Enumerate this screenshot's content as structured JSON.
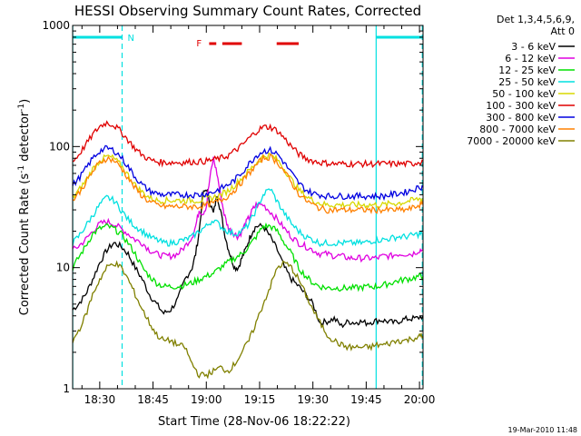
{
  "chart_data": {
    "type": "line",
    "title": "HESSI Observing Summary Count Rates, Corrected",
    "xlabel": "Start Time (28-Nov-06 18:22:22)",
    "ylabel_parts": [
      "Corrected Count Rate (s",
      "-1",
      " detector",
      "-1",
      ")"
    ],
    "y_scale": "log",
    "ylim": [
      1,
      1000
    ],
    "y_ticks": [
      {
        "value": 1,
        "label": "1"
      },
      {
        "value": 10,
        "label": "10"
      },
      {
        "value": 100,
        "label": "100"
      },
      {
        "value": 1000,
        "label": "1000"
      }
    ],
    "xlim_minutes": [
      1102.37,
      1201.0
    ],
    "x_ticks": [
      {
        "value": 1110,
        "label": "18:30"
      },
      {
        "value": 1125,
        "label": "18:45"
      },
      {
        "value": 1140,
        "label": "19:00"
      },
      {
        "value": 1155,
        "label": "19:15"
      },
      {
        "value": 1170,
        "label": "19:30"
      },
      {
        "value": 1185,
        "label": "19:45"
      },
      {
        "value": 1200,
        "label": "20:00"
      }
    ],
    "legend_header": [
      "Det 1,3,4,5,6,9,",
      "Att 0"
    ],
    "legend_position": "right",
    "series": [
      {
        "name": "3 - 6 keV",
        "color": "#000000",
        "x": [
          1102.4,
          1104,
          1106,
          1108,
          1110,
          1112,
          1114,
          1116,
          1118,
          1120,
          1122,
          1124,
          1126,
          1128,
          1130,
          1132,
          1134,
          1136,
          1137,
          1138,
          1139,
          1140,
          1141,
          1142,
          1143,
          1144,
          1145,
          1146,
          1147,
          1148,
          1149,
          1150,
          1151,
          1152,
          1153,
          1154,
          1156,
          1158,
          1160,
          1162,
          1164,
          1166,
          1168,
          1170,
          1172,
          1174,
          1176,
          1178,
          1180,
          1182,
          1183,
          1185,
          1187,
          1189,
          1191,
          1193,
          1195,
          1197,
          1199,
          1201
        ],
        "y": [
          4.5,
          5,
          6,
          8,
          11,
          14,
          16,
          15,
          13,
          10,
          8,
          6,
          5,
          4.2,
          4.5,
          5.5,
          8,
          10,
          13,
          20,
          40,
          45,
          35,
          28,
          40,
          30,
          20,
          15,
          12,
          10,
          10,
          12,
          14,
          17,
          20,
          22,
          22,
          18,
          14,
          10,
          8,
          7,
          6,
          5,
          3.5,
          3.6,
          3.8,
          3.3,
          3.6,
          3.5,
          3.6,
          3.5,
          3.6,
          3.7,
          3.6,
          3.5,
          3.7,
          3.8,
          3.8,
          4
        ]
      },
      {
        "name": "6 - 12 keV",
        "color": "#e000e0",
        "x": [
          1102.4,
          1104,
          1106,
          1108,
          1110,
          1112,
          1114,
          1116,
          1118,
          1120,
          1122,
          1124,
          1126,
          1128,
          1130,
          1132,
          1134,
          1136,
          1137,
          1138,
          1139,
          1140,
          1141,
          1142,
          1143,
          1144,
          1145,
          1146,
          1147,
          1148,
          1149,
          1150,
          1151,
          1152,
          1153,
          1154,
          1156,
          1158,
          1160,
          1162,
          1164,
          1166,
          1168,
          1170,
          1172,
          1174,
          1176,
          1178,
          1180,
          1182,
          1184,
          1186,
          1188,
          1190,
          1192,
          1194,
          1196,
          1198,
          1200,
          1201
        ],
        "y": [
          14,
          15,
          17,
          20,
          23,
          24,
          23,
          21,
          19,
          17,
          16,
          14,
          13,
          12.5,
          12.5,
          13,
          15,
          18,
          22,
          30,
          28,
          32,
          55,
          80,
          60,
          40,
          28,
          22,
          20,
          19,
          18,
          20,
          23,
          26,
          30,
          33,
          33,
          29,
          25,
          21,
          18,
          16,
          15,
          14,
          13,
          13,
          12.5,
          12.5,
          12,
          12,
          12,
          12,
          12,
          12.5,
          12.5,
          13,
          13,
          13,
          14,
          14
        ]
      },
      {
        "name": "12 - 25 keV",
        "color": "#00e000",
        "x": [
          1102.4,
          1104,
          1106,
          1108,
          1110,
          1112,
          1114,
          1116,
          1118,
          1120,
          1122,
          1124,
          1126,
          1128,
          1130,
          1132,
          1134,
          1136,
          1138,
          1140,
          1142,
          1144,
          1146,
          1148,
          1150,
          1152,
          1154,
          1156,
          1158,
          1160,
          1162,
          1164,
          1166,
          1168,
          1170,
          1172,
          1174,
          1176,
          1178,
          1180,
          1182,
          1184,
          1186,
          1188,
          1190,
          1192,
          1194,
          1196,
          1198,
          1200,
          1201
        ],
        "y": [
          10,
          12,
          15,
          19,
          21,
          22,
          21,
          19,
          16,
          13,
          10,
          8.5,
          7.5,
          7,
          7,
          7,
          7.2,
          7.5,
          8,
          8.5,
          9,
          10,
          11,
          12,
          13,
          15,
          18,
          22,
          22,
          20,
          16,
          13,
          10,
          8.5,
          7.5,
          7,
          6.8,
          6.8,
          6.8,
          6.8,
          6.8,
          6.9,
          7,
          7,
          7.2,
          7.5,
          7.8,
          8,
          8.2,
          8.5,
          8.5
        ]
      },
      {
        "name": "25 - 50 keV",
        "color": "#00e0e0",
        "x": [
          1102.4,
          1104,
          1106,
          1108,
          1110,
          1112,
          1114,
          1116,
          1118,
          1120,
          1122,
          1124,
          1126,
          1128,
          1130,
          1132,
          1134,
          1136,
          1138,
          1140,
          1142,
          1144,
          1146,
          1148,
          1150,
          1152,
          1154,
          1156,
          1158,
          1160,
          1162,
          1164,
          1166,
          1168,
          1170,
          1172,
          1174,
          1176,
          1178,
          1180,
          1182,
          1184,
          1186,
          1188,
          1190,
          1192,
          1194,
          1196,
          1198,
          1200,
          1201
        ],
        "y": [
          16,
          18,
          22,
          27,
          33,
          38,
          36,
          30,
          25,
          22,
          20,
          18,
          17,
          16,
          16,
          16.5,
          17,
          18,
          20,
          22,
          25,
          22,
          20,
          19,
          20,
          23,
          30,
          40,
          45,
          35,
          28,
          23,
          20,
          18,
          17,
          16,
          16,
          16,
          16,
          16,
          16,
          16,
          16.5,
          17,
          17,
          17.5,
          18,
          18,
          18.5,
          19,
          19
        ]
      },
      {
        "name": "50 - 100 keV",
        "color": "#d8d800",
        "x": [
          1102.4,
          1104,
          1106,
          1108,
          1110,
          1112,
          1114,
          1116,
          1118,
          1120,
          1122,
          1124,
          1126,
          1128,
          1130,
          1132,
          1134,
          1136,
          1138,
          1140,
          1142,
          1144,
          1146,
          1148,
          1150,
          1152,
          1154,
          1156,
          1158,
          1160,
          1162,
          1164,
          1166,
          1168,
          1170,
          1172,
          1174,
          1176,
          1178,
          1180,
          1182,
          1184,
          1186,
          1188,
          1190,
          1192,
          1194,
          1196,
          1198,
          1200,
          1201
        ],
        "y": [
          38,
          43,
          52,
          65,
          76,
          83,
          80,
          70,
          58,
          48,
          42,
          38,
          36,
          36,
          36,
          36,
          36,
          36,
          36,
          37,
          38,
          40,
          43,
          48,
          55,
          63,
          73,
          83,
          85,
          78,
          65,
          53,
          44,
          39,
          36,
          34,
          33,
          33,
          33,
          33,
          33,
          33,
          33,
          33,
          33,
          34,
          34,
          35,
          36,
          37,
          37
        ]
      },
      {
        "name": "100 - 300 keV",
        "color": "#e00000",
        "x": [
          1102.4,
          1104,
          1106,
          1108,
          1110,
          1112,
          1114,
          1116,
          1118,
          1120,
          1122,
          1124,
          1126,
          1128,
          1130,
          1132,
          1134,
          1136,
          1138,
          1140,
          1142,
          1144,
          1146,
          1148,
          1150,
          1152,
          1154,
          1156,
          1158,
          1160,
          1162,
          1164,
          1166,
          1168,
          1170,
          1172,
          1174,
          1176,
          1178,
          1180,
          1182,
          1184,
          1186,
          1188,
          1190,
          1192,
          1194,
          1196,
          1198,
          1200,
          1201
        ],
        "y": [
          75,
          85,
          103,
          125,
          147,
          158,
          150,
          133,
          113,
          96,
          85,
          78,
          75,
          74,
          74,
          74,
          74,
          75,
          75,
          76,
          78,
          80,
          84,
          92,
          102,
          117,
          133,
          145,
          145,
          135,
          117,
          100,
          87,
          80,
          76,
          74,
          73,
          72,
          72,
          72,
          72,
          72,
          72,
          72,
          72,
          72,
          72,
          72,
          72,
          75,
          76
        ]
      },
      {
        "name": "300 - 800 keV",
        "color": "#0000e0",
        "x": [
          1102.4,
          1104,
          1106,
          1108,
          1110,
          1112,
          1114,
          1116,
          1118,
          1120,
          1122,
          1124,
          1126,
          1128,
          1130,
          1132,
          1134,
          1136,
          1138,
          1140,
          1142,
          1144,
          1146,
          1148,
          1150,
          1152,
          1154,
          1156,
          1158,
          1160,
          1162,
          1164,
          1166,
          1168,
          1170,
          1172,
          1174,
          1176,
          1178,
          1180,
          1182,
          1184,
          1186,
          1188,
          1190,
          1192,
          1194,
          1196,
          1198,
          1200,
          1201
        ],
        "y": [
          48,
          54,
          65,
          80,
          92,
          97,
          93,
          82,
          68,
          56,
          48,
          43,
          41,
          40,
          40,
          40,
          40,
          40,
          40,
          41,
          42,
          45,
          48,
          53,
          61,
          72,
          84,
          92,
          93,
          87,
          73,
          60,
          50,
          44,
          41,
          40,
          39,
          39,
          39,
          39,
          39,
          39,
          39,
          39,
          39,
          40,
          41,
          42,
          44,
          46,
          47
        ]
      },
      {
        "name": "800 - 7000 keV",
        "color": "#ff8000",
        "x": [
          1102.4,
          1104,
          1106,
          1108,
          1110,
          1112,
          1114,
          1116,
          1118,
          1120,
          1122,
          1124,
          1126,
          1128,
          1130,
          1132,
          1134,
          1136,
          1138,
          1140,
          1142,
          1144,
          1146,
          1148,
          1150,
          1152,
          1154,
          1156,
          1158,
          1160,
          1162,
          1164,
          1166,
          1168,
          1170,
          1172,
          1174,
          1176,
          1178,
          1180,
          1182,
          1184,
          1186,
          1188,
          1190,
          1192,
          1194,
          1196,
          1198,
          1200,
          1201
        ],
        "y": [
          36,
          41,
          50,
          62,
          74,
          80,
          77,
          67,
          55,
          45,
          39,
          35,
          33,
          32,
          32,
          32,
          32,
          32,
          32,
          33,
          34,
          36,
          39,
          44,
          51,
          60,
          70,
          80,
          82,
          75,
          62,
          50,
          41,
          36,
          33,
          31,
          30,
          30,
          30,
          30,
          30,
          30,
          30,
          30,
          30,
          30,
          30,
          30,
          31,
          33,
          33
        ]
      },
      {
        "name": "7000 - 20000 keV",
        "color": "#808000",
        "x": [
          1102.4,
          1104,
          1106,
          1108,
          1110,
          1112,
          1114,
          1116,
          1118,
          1120,
          1122,
          1124,
          1126,
          1128,
          1130,
          1132,
          1134,
          1136,
          1138,
          1140,
          1142,
          1144,
          1146,
          1148,
          1150,
          1152,
          1154,
          1156,
          1158,
          1160,
          1162,
          1164,
          1166,
          1168,
          1170,
          1172,
          1174,
          1176,
          1178,
          1180,
          1182,
          1184,
          1186,
          1188,
          1190,
          1192,
          1194,
          1196,
          1198,
          1200,
          1201
        ],
        "y": [
          2.5,
          3,
          4,
          6,
          8,
          10,
          11,
          10,
          8,
          6,
          4.5,
          3.5,
          2.8,
          2.5,
          2.5,
          2.3,
          2.2,
          1.6,
          1.3,
          1.3,
          1.4,
          1.5,
          1.4,
          1.6,
          2,
          2.5,
          3.5,
          5,
          7,
          10,
          11,
          10,
          8,
          6,
          4.5,
          3.5,
          2.8,
          2.5,
          2.3,
          2.2,
          2.2,
          2.2,
          2.2,
          2.3,
          2.3,
          2.4,
          2.5,
          2.5,
          2.6,
          2.7,
          2.7
        ]
      }
    ],
    "bars_top": [
      {
        "color": "#00e0e0",
        "label": "N",
        "start": 1102.4,
        "end": 1116.3
      },
      {
        "color": "#00e0e0",
        "label": "",
        "start": 1187.8,
        "end": 1200.8
      }
    ],
    "flare_flags": {
      "label": "F",
      "color": "#e00000",
      "segments": [
        [
          1140.8,
          1142.8
        ],
        [
          1144.5,
          1150.0
        ],
        [
          1159.8,
          1166.0
        ]
      ]
    },
    "night_markers": {
      "color": "#00e0e0",
      "solid": [
        1102.4,
        1187.8
      ],
      "dashed": [
        1116.3,
        1200.8
      ]
    },
    "annotations": {
      "date_stamp": "19-Mar-2010 11:48"
    }
  }
}
